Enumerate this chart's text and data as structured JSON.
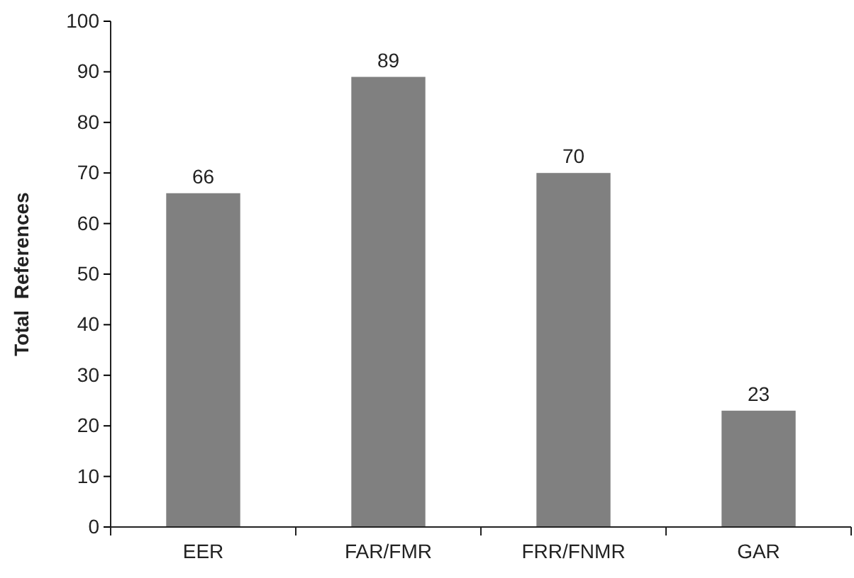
{
  "chart_data": {
    "type": "bar",
    "ylabel": "Total  References",
    "categories": [
      "EER",
      "FAR/FMR",
      "FRR/FNMR",
      "GAR"
    ],
    "values": [
      66,
      89,
      70,
      23
    ],
    "color": "#808080",
    "ylim": [
      0,
      100
    ],
    "yticks": [
      0,
      10,
      20,
      30,
      40,
      50,
      60,
      70,
      80,
      90,
      100
    ],
    "data_labels": true
  }
}
